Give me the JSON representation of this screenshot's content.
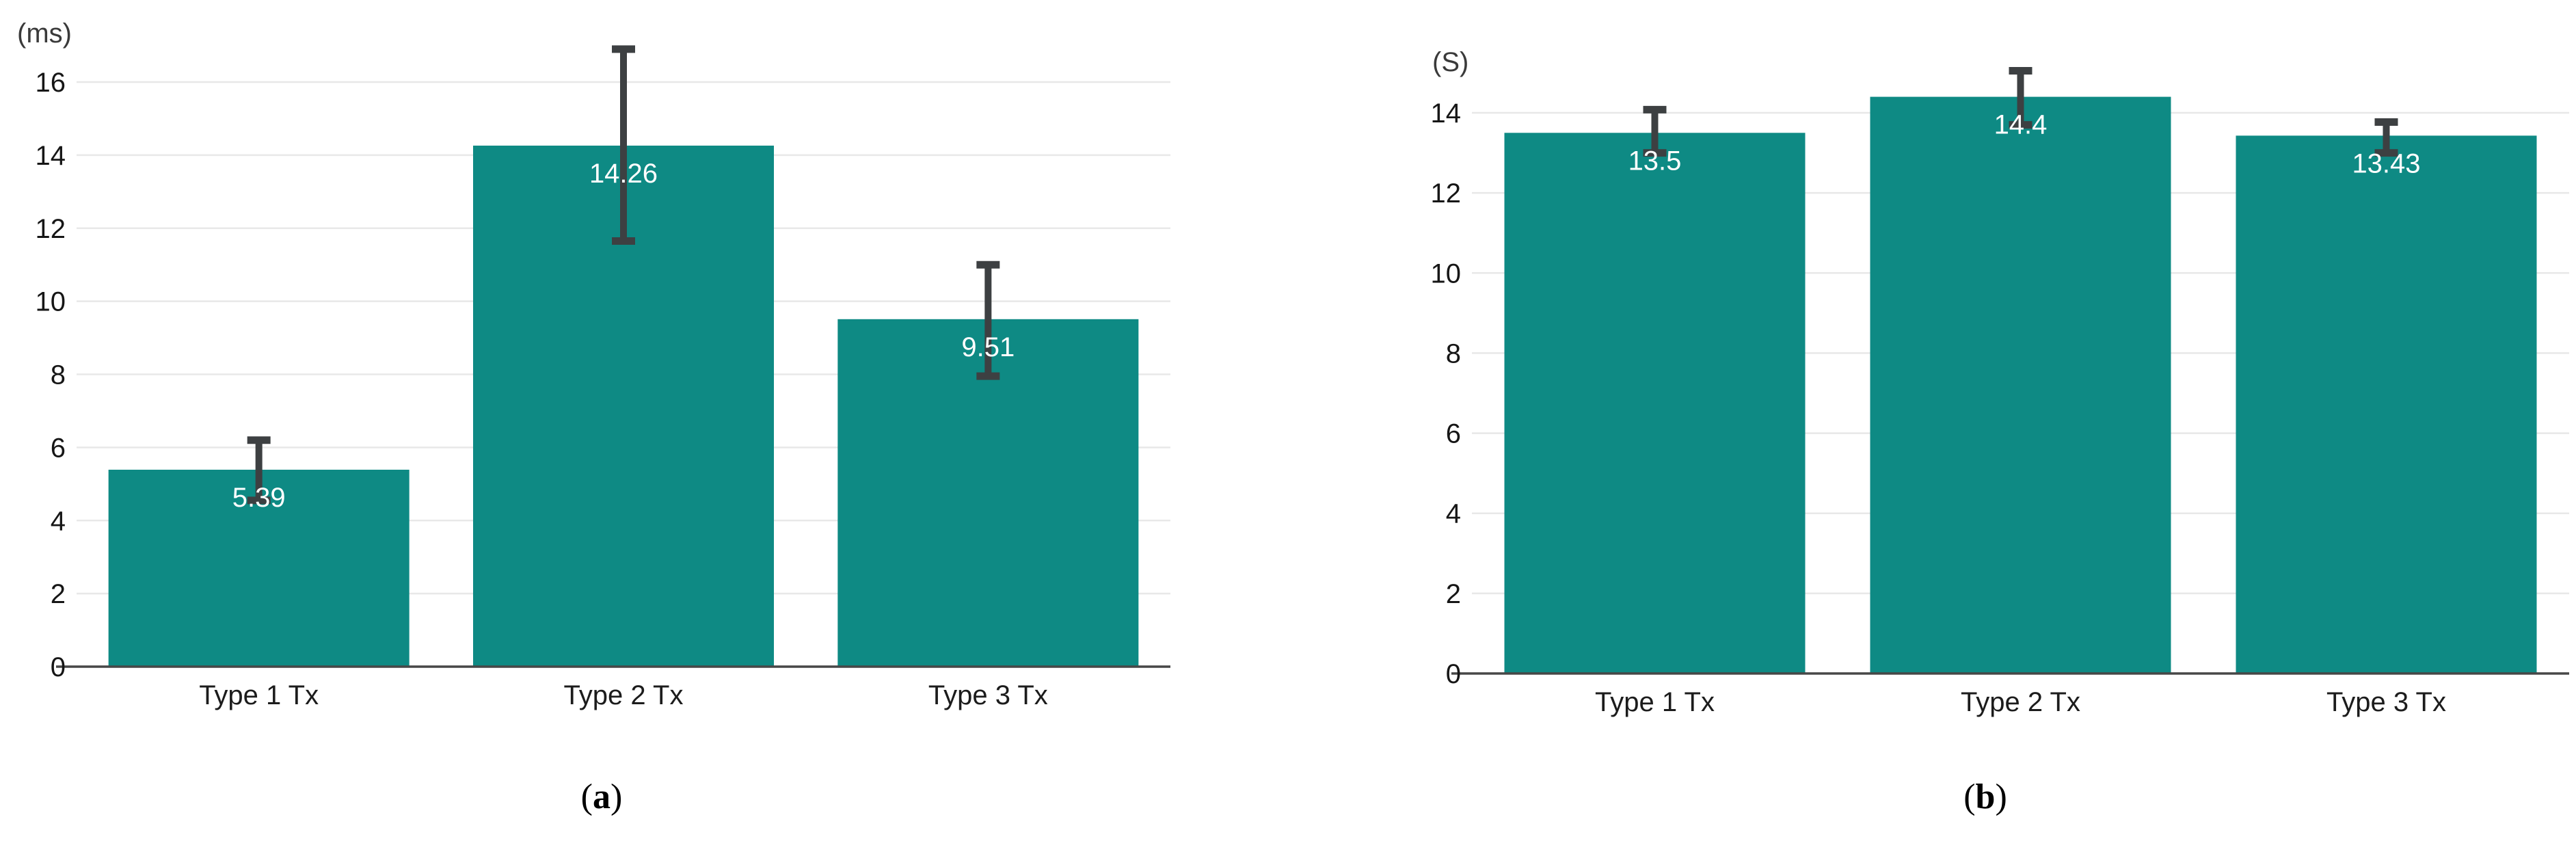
{
  "figure": {
    "background": "#ffffff"
  },
  "colors": {
    "bar": "#0e8a84",
    "grid_line": "#e8e8e8",
    "axis_line": "#474747",
    "error_bar": "#3d4042",
    "tick_text": "#161616",
    "xlabel_text": "#1c1c1c",
    "value_text": "#ffffff",
    "unit_text": "#3a3a3a",
    "caption_text": "#000000"
  },
  "chart_data": [
    {
      "id": "a",
      "type": "bar",
      "title": "",
      "unit_label": "(ms)",
      "categories": [
        "Type 1 Tx",
        "Type 2 Tx",
        "Type 3 Tx"
      ],
      "values": [
        5.39,
        14.26,
        9.51
      ],
      "value_labels": [
        "5.39",
        "14.26",
        "9.51"
      ],
      "error_low": [
        4.55,
        11.65,
        7.95
      ],
      "error_high": [
        6.2,
        16.9,
        11.0
      ],
      "ylim": [
        0,
        16
      ],
      "ytick_step": 2,
      "grid": true,
      "legend": "none",
      "caption": {
        "open": "(",
        "letter": "a",
        "close": ")"
      }
    },
    {
      "id": "b",
      "type": "bar",
      "title": "",
      "unit_label": "(S)",
      "categories": [
        "Type 1 Tx",
        "Type 2 Tx",
        "Type 3 Tx"
      ],
      "values": [
        13.5,
        14.4,
        13.43
      ],
      "value_labels": [
        "13.5",
        "14.4",
        "13.43"
      ],
      "error_low": [
        13.0,
        13.7,
        13.0
      ],
      "error_high": [
        14.08,
        15.05,
        13.77
      ],
      "ylim": [
        0,
        14
      ],
      "ytick_step": 2,
      "grid": true,
      "legend": "none",
      "caption": {
        "open": "(",
        "letter": "b",
        "close": ")"
      }
    }
  ]
}
